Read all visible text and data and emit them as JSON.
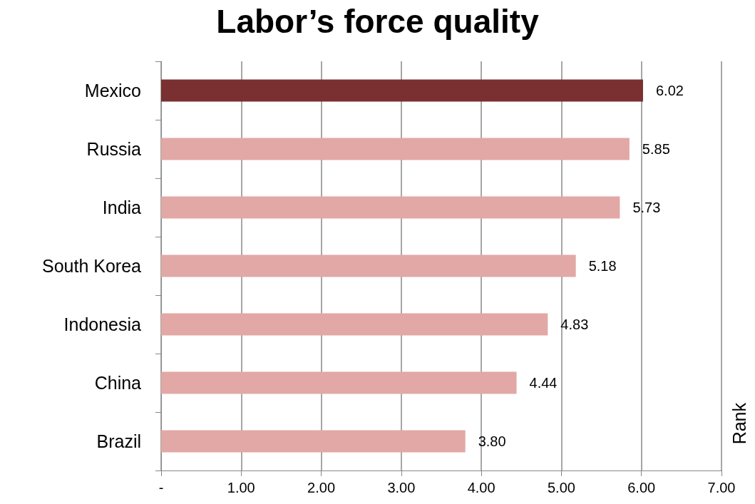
{
  "chart_data": {
    "type": "bar",
    "orientation": "horizontal",
    "title": "Labor’s force quality",
    "ylabel": "Rank",
    "categories": [
      "Mexico",
      "Russia",
      "India",
      "South Korea",
      "Indonesia",
      "China",
      "Brazil"
    ],
    "values": [
      6.02,
      5.85,
      5.73,
      5.18,
      4.83,
      4.44,
      3.8
    ],
    "colors": [
      "#7a3030",
      "#e2a8a6",
      "#e2a8a6",
      "#e2a8a6",
      "#e2a8a6",
      "#e2a8a6",
      "#e2a8a6"
    ],
    "value_labels": [
      "6.02",
      "5.85",
      "5.73",
      "5.18",
      "4.83",
      "4.44",
      "3.80"
    ],
    "xlim": [
      0,
      7
    ],
    "xticks": [
      {
        "value": 0,
        "label": "-"
      },
      {
        "value": 1,
        "label": "1.00"
      },
      {
        "value": 2,
        "label": "2.00"
      },
      {
        "value": 3,
        "label": "3.00"
      },
      {
        "value": 4,
        "label": "4.00"
      },
      {
        "value": 5,
        "label": "5.00"
      },
      {
        "value": 6,
        "label": "6.00"
      },
      {
        "value": 7,
        "label": "7.00"
      }
    ],
    "grid": "x"
  }
}
